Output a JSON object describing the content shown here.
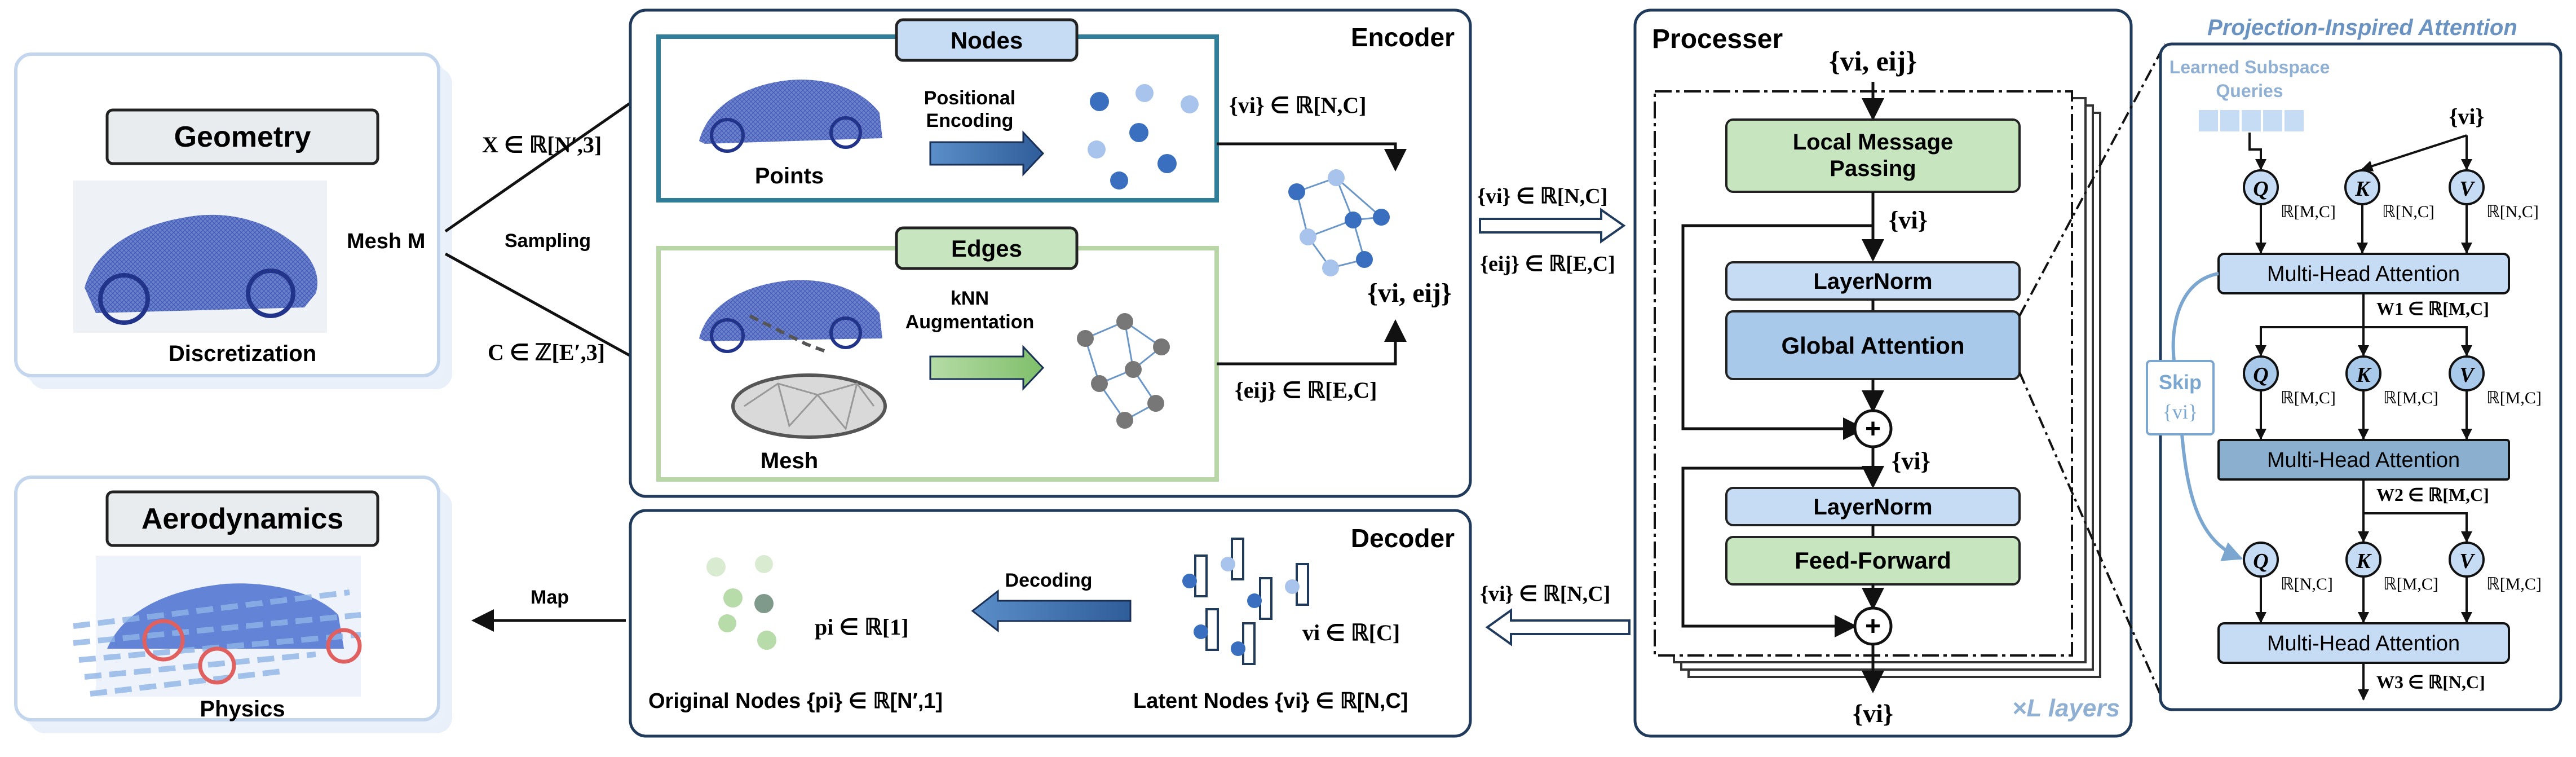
{
  "geometry": {
    "title": "Geometry",
    "mesh_label": "Mesh M",
    "caption": "Discretization"
  },
  "aerodynamics": {
    "title": "Aerodynamics",
    "caption": "Physics"
  },
  "arrows": {
    "x_label": "X ∈ ℝ[N′,3]",
    "sampling": "Sampling",
    "c_label": "C ∈ ℤ[E′,3]",
    "map": "Map"
  },
  "encoder": {
    "title": "Encoder",
    "nodes_tag": "Nodes",
    "positional_encoding": [
      "Positional",
      "Encoding"
    ],
    "points": "Points",
    "vi_out": "{vi} ∈ ℝ[N,C]",
    "edges_tag": "Edges",
    "knn": [
      "kNN",
      "Augmentation"
    ],
    "mesh": "Mesh",
    "eij_out": "{eij} ∈ ℝ[E,C]",
    "graph_label": "{vi, eij}"
  },
  "between": {
    "to_processor_vi": "{vi} ∈ ℝ[N,C]",
    "to_processor_eij": "{eij} ∈ ℝ[E,C]",
    "from_processor_vi": "{vi} ∈ ℝ[N,C]"
  },
  "processor": {
    "title": "Processer",
    "input": "{vi, eij}",
    "local_message": [
      "Local Message",
      "Passing"
    ],
    "vi_after_local": "{vi}",
    "layernorm1": "LayerNorm",
    "global_attention": "Global Attention",
    "vi_mid": "{vi}",
    "layernorm2": "LayerNorm",
    "feed_forward": "Feed-Forward",
    "output": "{vi}",
    "layers": "×L layers",
    "plus": "+"
  },
  "decoder": {
    "title": "Decoder",
    "decoding": "Decoding",
    "pi_label": "pi ∈ ℝ[1]",
    "vi_label": "vi ∈ ℝ[C]",
    "original_nodes": "Original Nodes {pi} ∈ ℝ[N′,1]",
    "latent_nodes": "Latent Nodes {vi} ∈ ℝ[N,C]"
  },
  "attention": {
    "title": "Projection-Inspired Attention",
    "queries": [
      "Learned Subspace",
      "Queries"
    ],
    "vi_in": "{vi}",
    "mha": "Multi-Head Attention",
    "w1": "W1 ∈ ℝ[M,C]",
    "w2": "W2 ∈ ℝ[M,C]",
    "w3": "W3 ∈ ℝ[N,C]",
    "skip": "Skip",
    "skip_vi": "{vi}",
    "q": "Q",
    "k": "K",
    "v": "V",
    "row1": [
      "ℝ[M,C]",
      "ℝ[N,C]",
      "ℝ[N,C]"
    ],
    "row2": [
      "ℝ[M,C]",
      "ℝ[M,C]",
      "ℝ[M,C]"
    ],
    "row3": [
      "ℝ[N,C]",
      "ℝ[M,C]",
      "ℝ[M,C]"
    ]
  },
  "colors": {
    "panel_border": "#1f3a5a",
    "nodes_border": "#2f7f9a",
    "edges_border": "#b9d7a6",
    "tag_blue": "#c6dcf5",
    "green_fill": "#c7e6c0",
    "blue_fill": "#c6dcf5",
    "dark_blue": "#8bb0cf",
    "title_blue": "#6a93c2",
    "point_blue": "#3a6fc0"
  }
}
